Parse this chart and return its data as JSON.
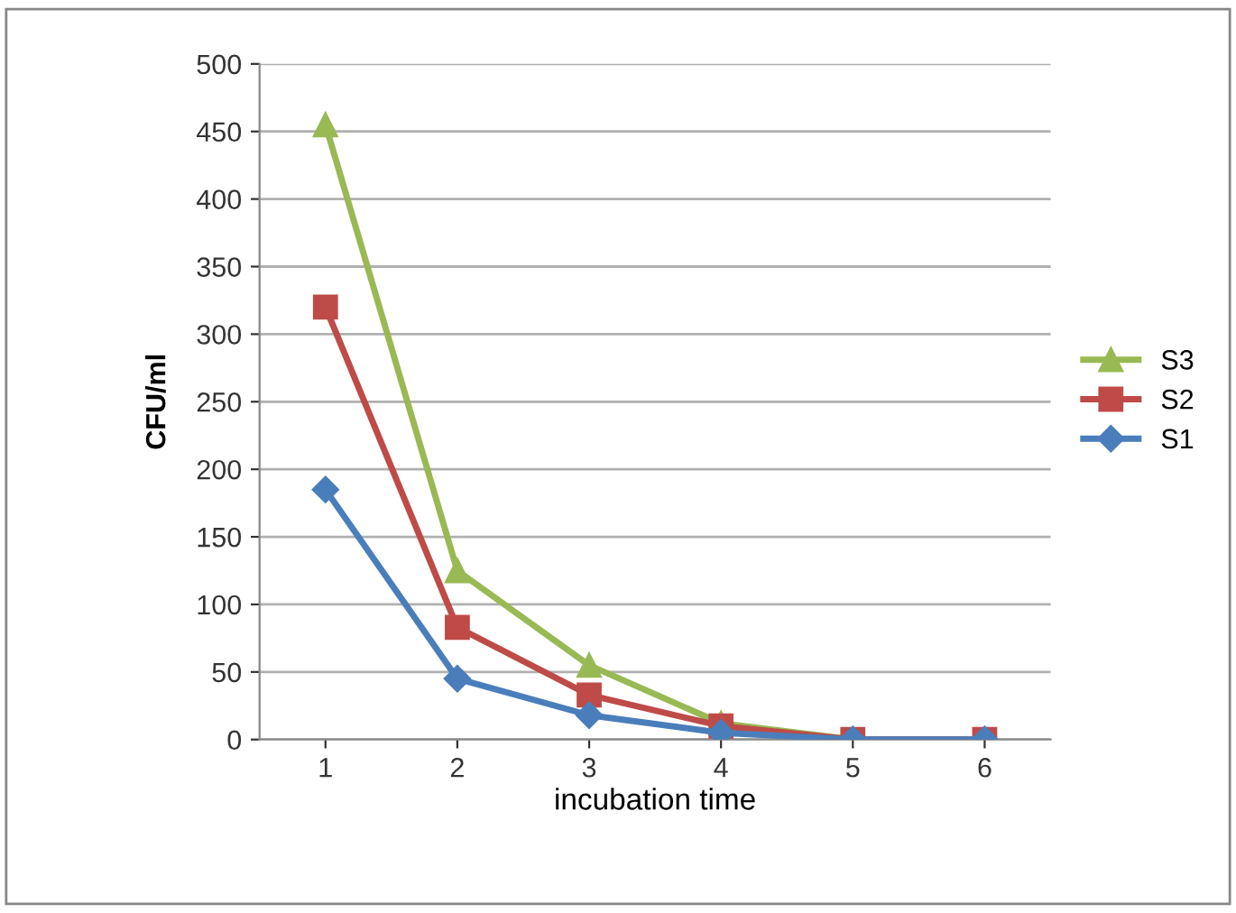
{
  "chart_data": {
    "type": "line",
    "xlabel": "incubation time",
    "ylabel": "CFU/ml",
    "categories": [
      "1",
      "2",
      "3",
      "4",
      "5",
      "6"
    ],
    "series": [
      {
        "name": "S1",
        "color": "#4a7ebb",
        "marker": "diamond",
        "values": [
          185,
          45,
          18,
          5,
          0,
          0
        ]
      },
      {
        "name": "S2",
        "color": "#be4b48",
        "marker": "square",
        "values": [
          320,
          83,
          33,
          10,
          0,
          0
        ]
      },
      {
        "name": "S3",
        "color": "#98b954",
        "marker": "triangle",
        "values": [
          455,
          125,
          55,
          12,
          0,
          0
        ]
      }
    ],
    "ylim": [
      0,
      500
    ],
    "yticks": [
      0,
      50,
      100,
      150,
      200,
      250,
      300,
      350,
      400,
      450,
      500
    ],
    "grid": "y",
    "legend": "right"
  }
}
